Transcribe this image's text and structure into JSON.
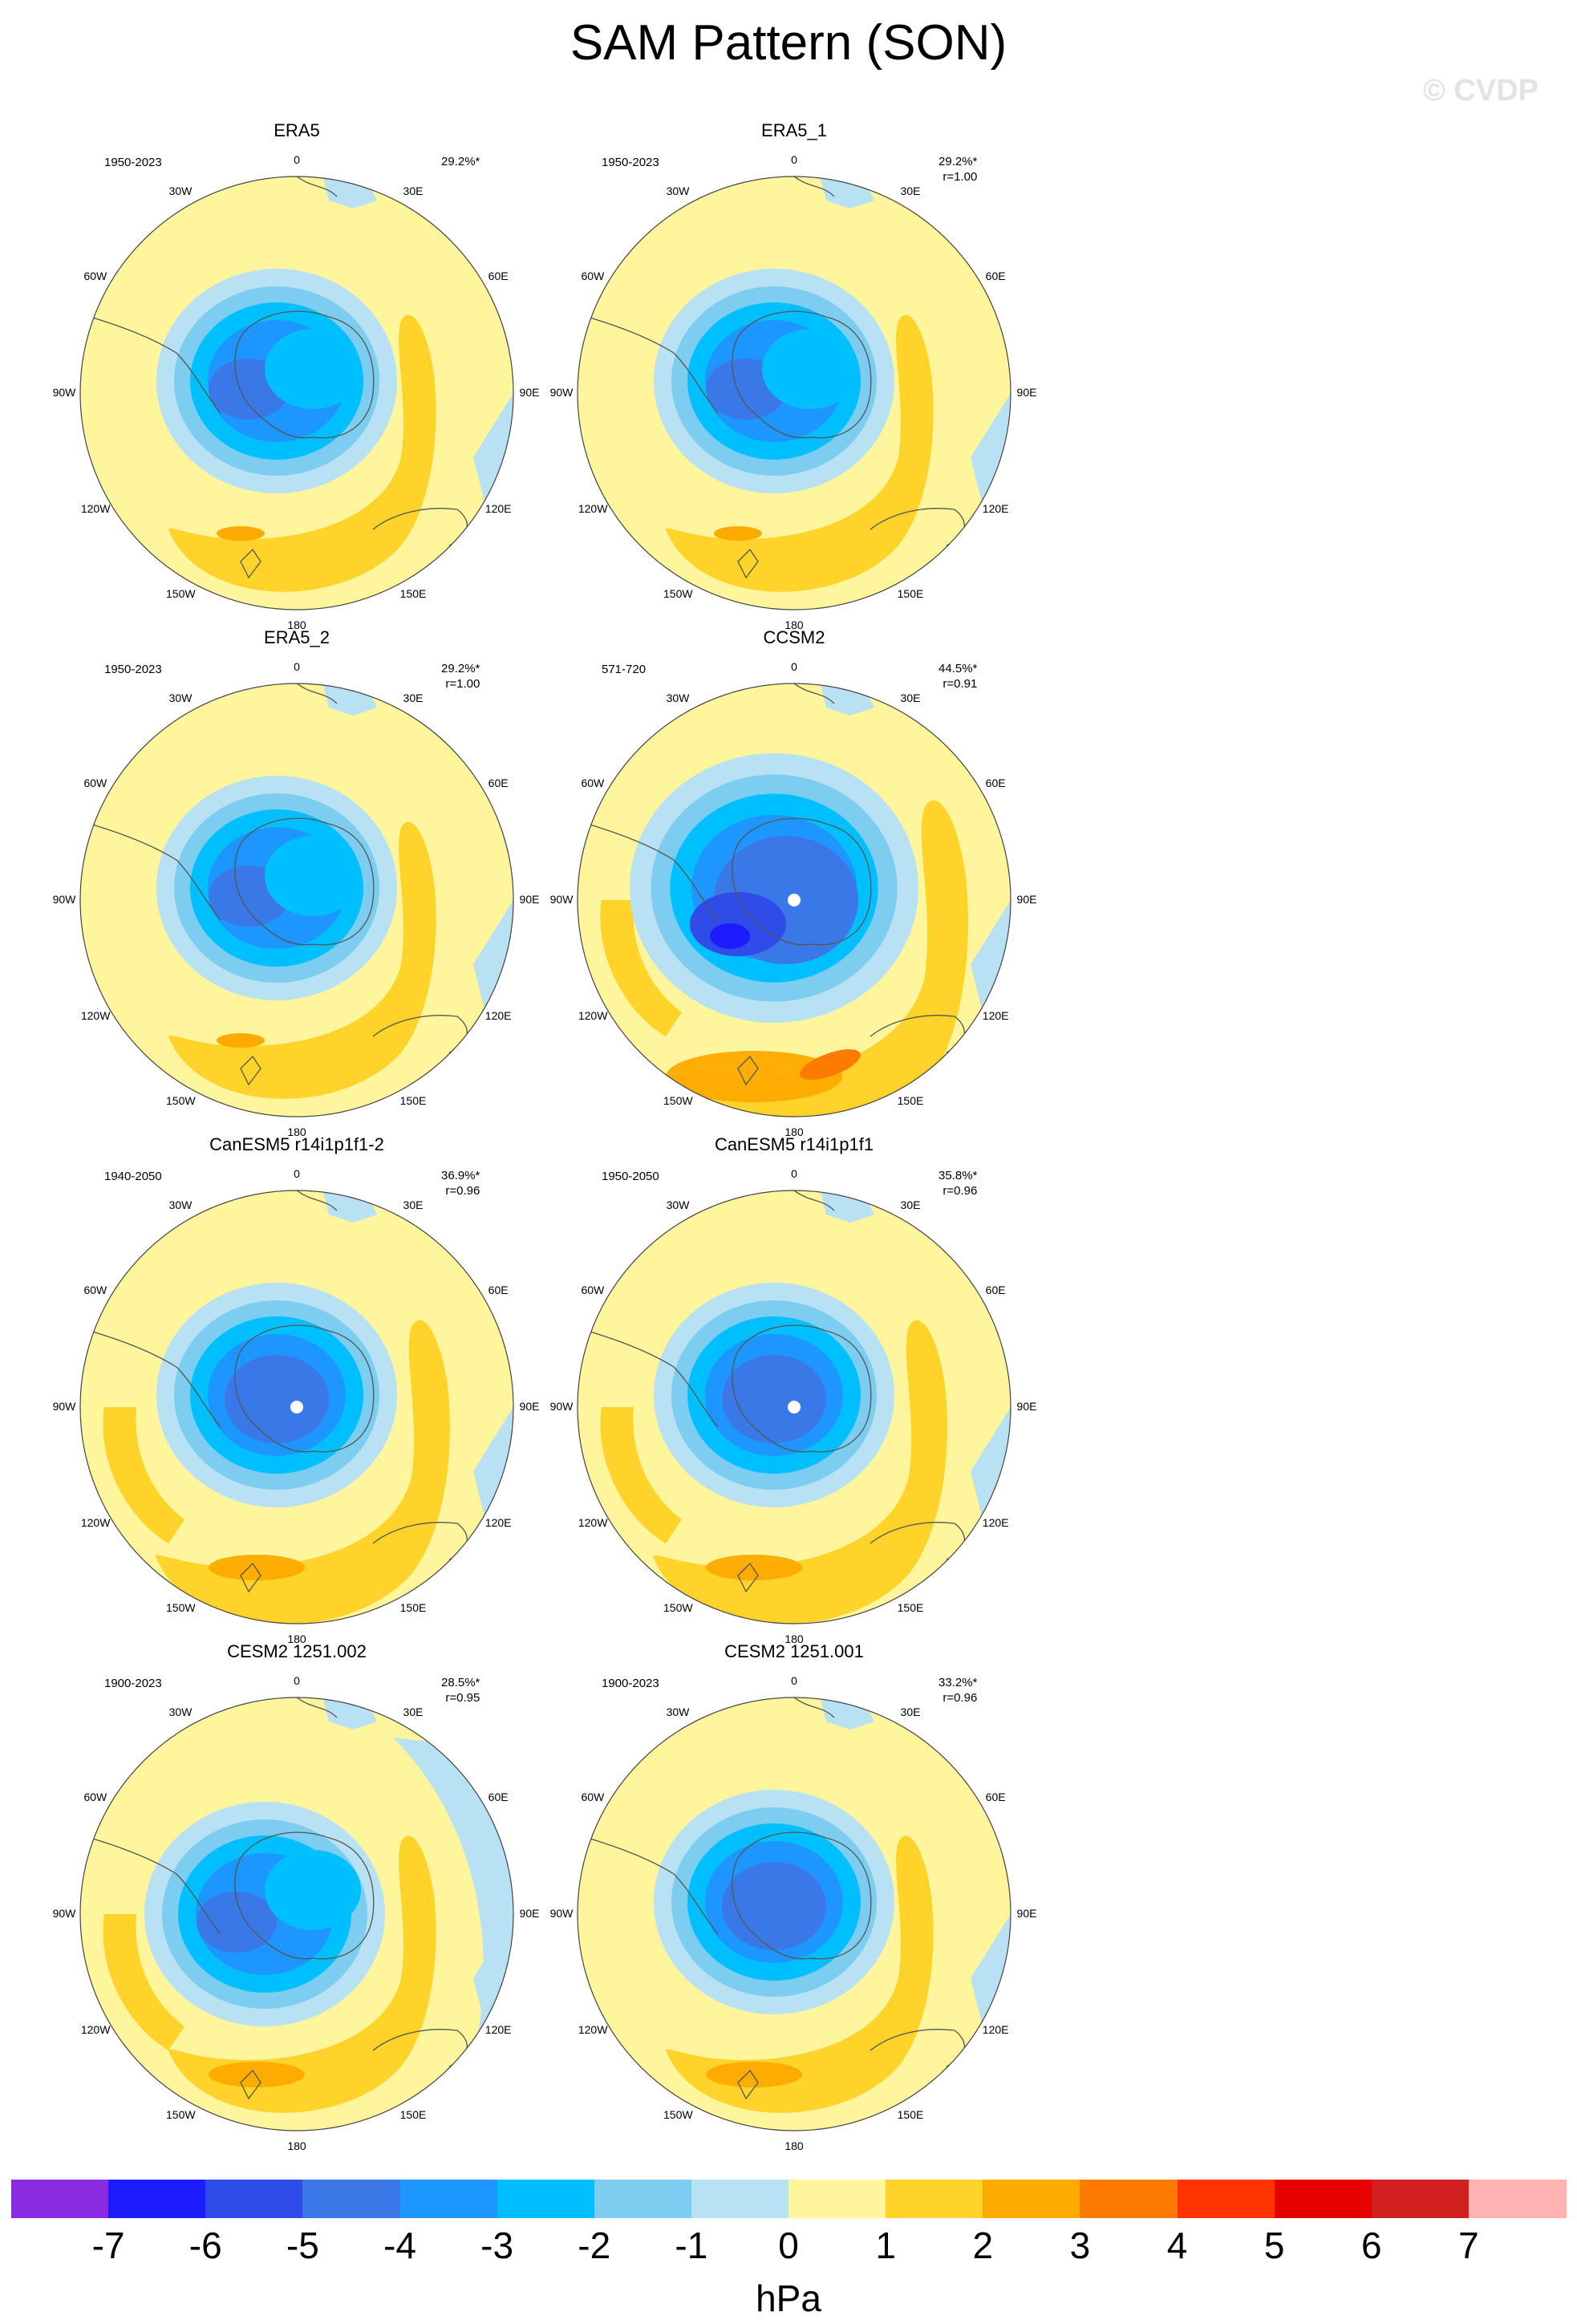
{
  "title": "SAM Pattern (SON)",
  "watermark": "© CVDP",
  "longitude_labels": [
    "0",
    "30E",
    "60E",
    "90E",
    "120E",
    "150E",
    "180",
    "150W",
    "120W",
    "90W",
    "60W",
    "30W"
  ],
  "panels": [
    {
      "name": "ERA5",
      "years": "1950-2023",
      "pct": "29.2%*",
      "r": "",
      "variant": "era5"
    },
    {
      "name": "ERA5_1",
      "years": "1950-2023",
      "pct": "29.2%*",
      "r": "r=1.00",
      "variant": "era5"
    },
    {
      "name": "ERA5_2",
      "years": "1950-2023",
      "pct": "29.2%*",
      "r": "r=1.00",
      "variant": "era5"
    },
    {
      "name": "CCSM2",
      "years": "571-720",
      "pct": "44.5%*",
      "r": "r=0.91",
      "variant": "ccsm"
    },
    {
      "name": "CanESM5 r14i1p1f1-2",
      "years": "1940-2050",
      "pct": "36.9%*",
      "r": "r=0.96",
      "variant": "canesm"
    },
    {
      "name": "CanESM5 r14i1p1f1",
      "years": "1950-2050",
      "pct": "35.8%*",
      "r": "r=0.96",
      "variant": "canesm"
    },
    {
      "name": "CESM2 1251.002",
      "years": "1900-2023",
      "pct": "28.5%*",
      "r": "r=0.95",
      "variant": "cesm2a"
    },
    {
      "name": "CESM2 1251.001",
      "years": "1900-2023",
      "pct": "33.2%*",
      "r": "r=0.96",
      "variant": "cesm2b"
    }
  ],
  "colorbar": {
    "units": "hPa",
    "labels": [
      "-7",
      "-6",
      "-5",
      "-4",
      "-3",
      "-2",
      "-1",
      "0",
      "1",
      "2",
      "3",
      "4",
      "5",
      "6",
      "7"
    ],
    "colors": [
      "#8a2be2",
      "#1c1cff",
      "#2f4ce8",
      "#3a78e8",
      "#1e96ff",
      "#00bfff",
      "#7ccdf0",
      "#b9e1f4",
      "#fff59d",
      "#ffd32a",
      "#ffaa00",
      "#ff7a00",
      "#ff3300",
      "#e60000",
      "#d21f1f",
      "#ffb3b3"
    ]
  }
}
